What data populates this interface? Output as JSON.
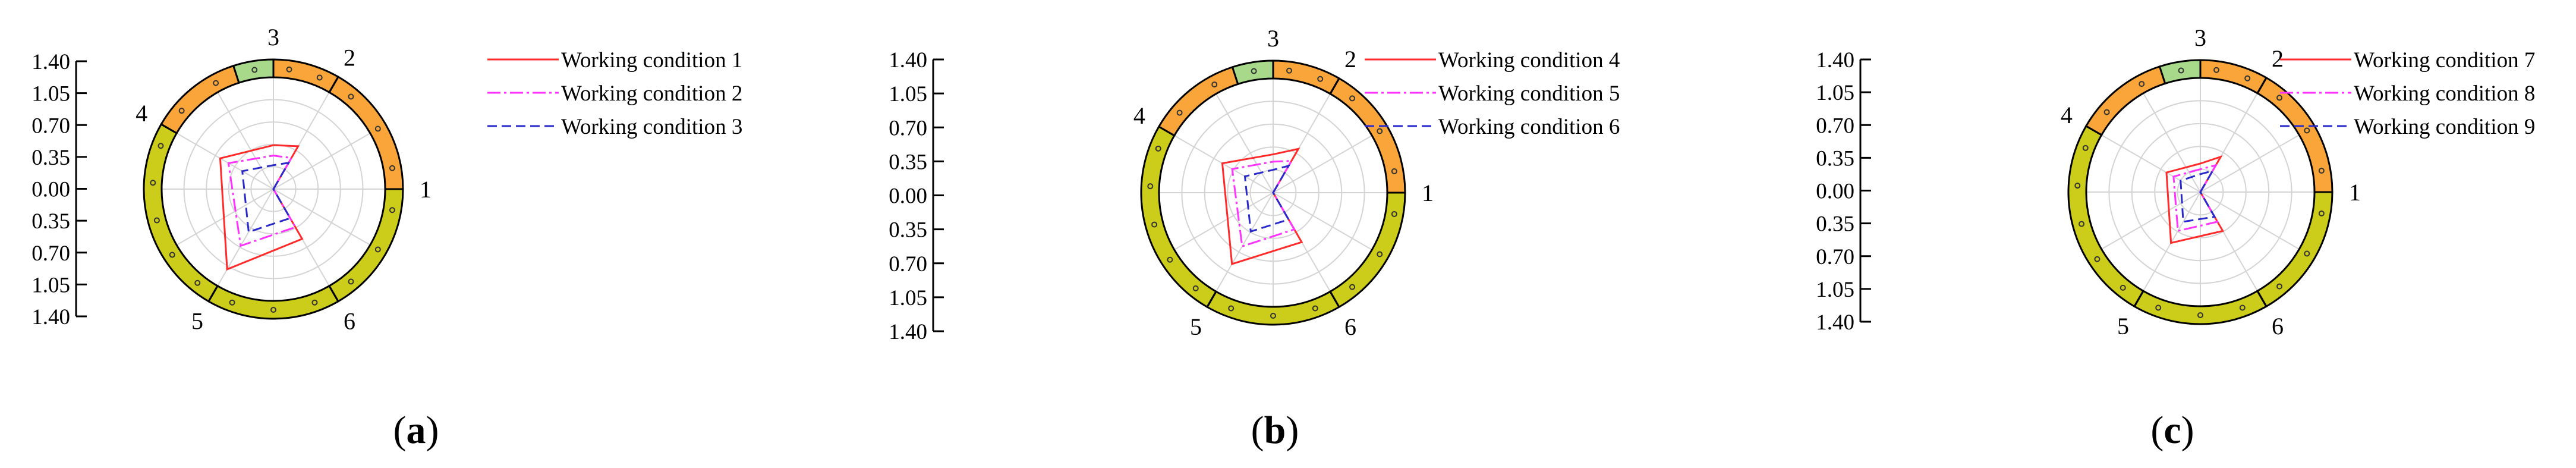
{
  "colors": {
    "series1": "#ff2a2a",
    "series2": "#ff33ff",
    "series3": "#2a2acc",
    "sector_orange": "#f9a53a",
    "sector_green": "#a8d889",
    "sector_olive": "#cccc1a",
    "grid": "#d4d4d4",
    "axis": "#000000"
  },
  "chart_data": [
    {
      "type": "radar",
      "panel_label": "(a)",
      "panel_letter": "a",
      "categories": [
        "1",
        "2",
        "3",
        "4",
        "5",
        "6"
      ],
      "radial_ticks": [
        "1.40",
        "1.05",
        "0.70",
        "0.35",
        "0.00",
        "0.35",
        "0.70",
        "1.05",
        "1.40"
      ],
      "rlim": [
        0,
        1.4
      ],
      "grid": true,
      "legend": "right",
      "series": [
        {
          "name": "Working condition 1",
          "values": [
            0.0,
            0.62,
            0.55,
            0.77,
            1.16,
            0.72
          ]
        },
        {
          "name": "Working condition 2",
          "values": [
            0.0,
            0.45,
            0.42,
            0.65,
            0.82,
            0.55
          ]
        },
        {
          "name": "Working condition 3",
          "values": [
            0.0,
            0.38,
            0.3,
            0.45,
            0.62,
            0.42
          ]
        }
      ]
    },
    {
      "type": "radar",
      "panel_label": "(b)",
      "panel_letter": "b",
      "categories": [
        "1",
        "2",
        "3",
        "4",
        "5",
        "6"
      ],
      "radial_ticks": [
        "1.40",
        "1.05",
        "0.70",
        "0.35",
        "0.00",
        "0.35",
        "0.70",
        "1.05",
        "1.40"
      ],
      "rlim": [
        0,
        1.4
      ],
      "grid": true,
      "legend": "right",
      "series": [
        {
          "name": "Working condition 4",
          "values": [
            0.0,
            0.62,
            0.47,
            0.72,
            1.01,
            0.7
          ]
        },
        {
          "name": "Working condition 5",
          "values": [
            0.0,
            0.45,
            0.38,
            0.58,
            0.76,
            0.52
          ]
        },
        {
          "name": "Working condition 6",
          "values": [
            0.0,
            0.38,
            0.28,
            0.4,
            0.55,
            0.38
          ]
        }
      ]
    },
    {
      "type": "radar",
      "panel_label": "(c)",
      "panel_letter": "c",
      "categories": [
        "1",
        "2",
        "3",
        "4",
        "5",
        "6"
      ],
      "radial_ticks": [
        "1.40",
        "1.05",
        "0.70",
        "0.35",
        "0.00",
        "0.35",
        "0.70",
        "1.05",
        "1.40"
      ],
      "rlim": [
        0,
        1.4
      ],
      "grid": true,
      "legend": "right",
      "series": [
        {
          "name": "Working condition 7",
          "values": [
            0.0,
            0.5,
            0.35,
            0.48,
            0.72,
            0.55
          ]
        },
        {
          "name": "Working condition 8",
          "values": [
            0.0,
            0.38,
            0.28,
            0.38,
            0.55,
            0.42
          ]
        },
        {
          "name": "Working condition 9",
          "values": [
            0.0,
            0.3,
            0.22,
            0.28,
            0.42,
            0.35
          ]
        }
      ]
    }
  ]
}
